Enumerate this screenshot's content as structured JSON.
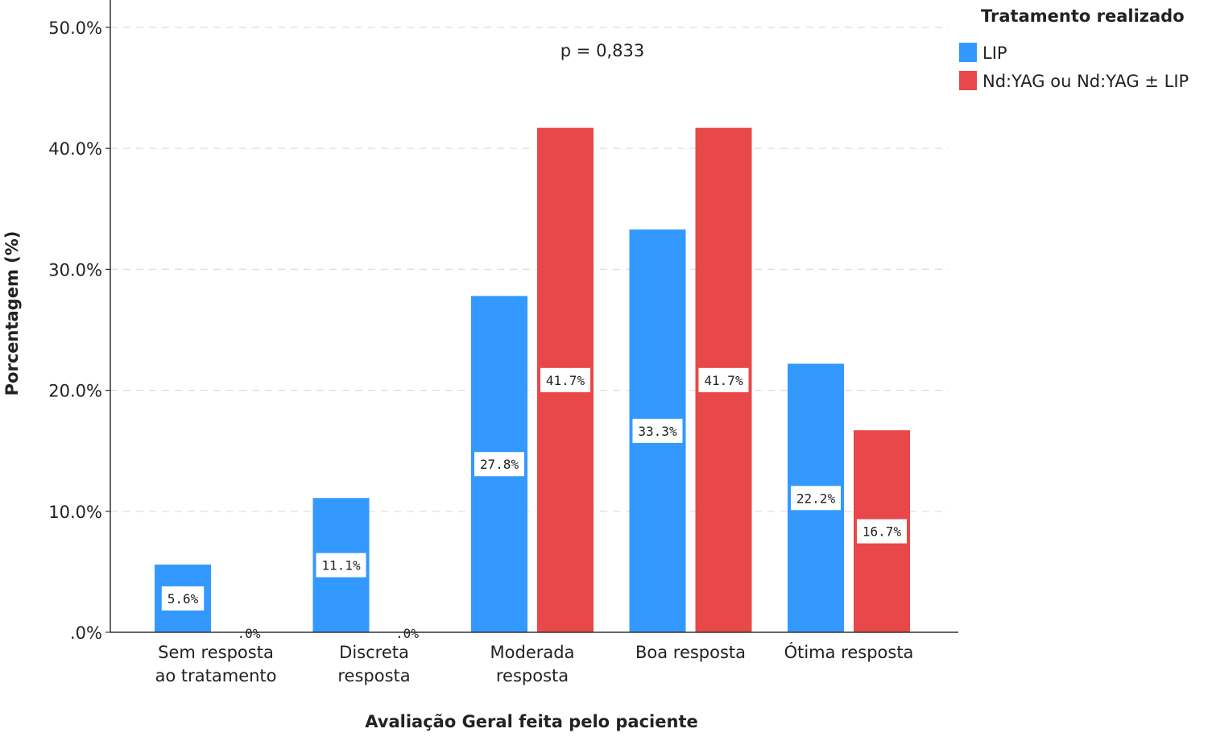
{
  "chart_data": {
    "type": "bar",
    "title": "",
    "xlabel": "Avaliação Geral feita pelo paciente",
    "ylabel": "Porcentagem (%)",
    "ylim": [
      0,
      50
    ],
    "y_ticks": [
      {
        "value": 0,
        "label": ".0%"
      },
      {
        "value": 10,
        "label": "10.0%"
      },
      {
        "value": 20,
        "label": "20.0%"
      },
      {
        "value": 30,
        "label": "30.0%"
      },
      {
        "value": 40,
        "label": "40.0%"
      },
      {
        "value": 50,
        "label": "50.0%"
      }
    ],
    "grid": true,
    "categories": [
      [
        "Sem resposta",
        "ao tratamento"
      ],
      [
        "Discreta",
        "resposta"
      ],
      [
        "Moderada",
        "resposta"
      ],
      [
        "Boa resposta"
      ],
      [
        "Ótima resposta"
      ]
    ],
    "legend": {
      "title": "Tratamento realizado",
      "position": "top-right"
    },
    "series": [
      {
        "name": "LIP",
        "color": "#3399ff",
        "values": [
          5.6,
          11.1,
          27.8,
          33.3,
          22.2
        ],
        "labels": [
          "5.6%",
          "11.1%",
          "27.8%",
          "33.3%",
          "22.2%"
        ]
      },
      {
        "name": "Nd:YAG ou Nd:YAG ± LIP",
        "color": "#e8484a",
        "values": [
          0,
          0,
          41.7,
          41.7,
          16.7
        ],
        "labels": [
          ".0%",
          ".0%",
          "41.7%",
          "41.7%",
          "16.7%"
        ]
      }
    ],
    "annotations": [
      {
        "text": "p = 0,833"
      }
    ]
  }
}
